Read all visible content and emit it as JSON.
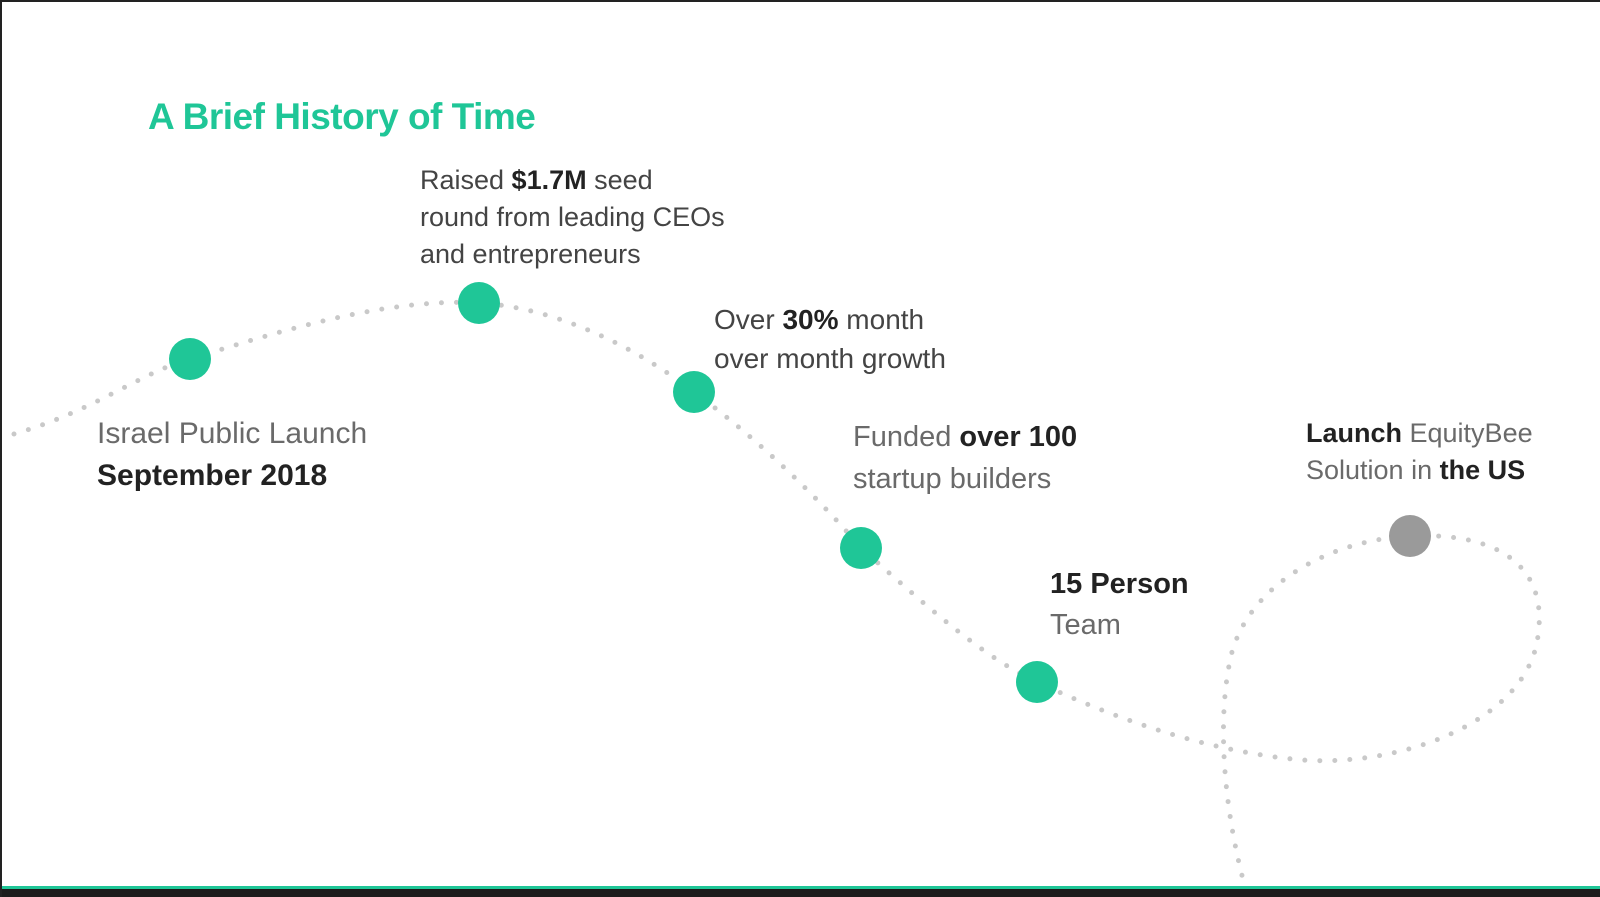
{
  "title": "A Brief History of Time",
  "colors": {
    "accent": "#1fc697",
    "future": "#9a9a9a",
    "path": "#c9c9c9"
  },
  "milestones": [
    {
      "lines": [
        {
          "parts": [
            {
              "text": "Israel Public Launch",
              "bold": false
            }
          ]
        },
        {
          "parts": [
            {
              "text": "September 2018",
              "bold": true
            }
          ]
        }
      ],
      "status": "done"
    },
    {
      "lines": [
        {
          "parts": [
            {
              "text": "Raised ",
              "bold": false
            },
            {
              "text": "$1.7M",
              "bold": true
            },
            {
              "text": " seed",
              "bold": false
            }
          ]
        },
        {
          "parts": [
            {
              "text": "round from leading CEOs",
              "bold": false
            }
          ]
        },
        {
          "parts": [
            {
              "text": "and entrepreneurs",
              "bold": false
            }
          ]
        }
      ],
      "status": "done"
    },
    {
      "lines": [
        {
          "parts": [
            {
              "text": "Over ",
              "bold": false
            },
            {
              "text": "30%",
              "bold": true
            },
            {
              "text": " month",
              "bold": false
            }
          ]
        },
        {
          "parts": [
            {
              "text": "over month growth",
              "bold": false
            }
          ]
        }
      ],
      "status": "done"
    },
    {
      "lines": [
        {
          "parts": [
            {
              "text": "Funded ",
              "bold": false
            },
            {
              "text": "over 100",
              "bold": true
            }
          ]
        },
        {
          "parts": [
            {
              "text": "startup builders",
              "bold": false
            }
          ]
        }
      ],
      "status": "done"
    },
    {
      "lines": [
        {
          "parts": [
            {
              "text": "15 Person",
              "bold": true
            }
          ]
        },
        {
          "parts": [
            {
              "text": "Team",
              "bold": false
            }
          ]
        }
      ],
      "status": "done"
    },
    {
      "lines": [
        {
          "parts": [
            {
              "text": "Launch",
              "bold": true
            },
            {
              "text": " EquityBee",
              "bold": false
            }
          ]
        },
        {
          "parts": [
            {
              "text": "Solution in ",
              "bold": false
            },
            {
              "text": "the US",
              "bold": true
            }
          ]
        }
      ],
      "status": "future"
    }
  ]
}
